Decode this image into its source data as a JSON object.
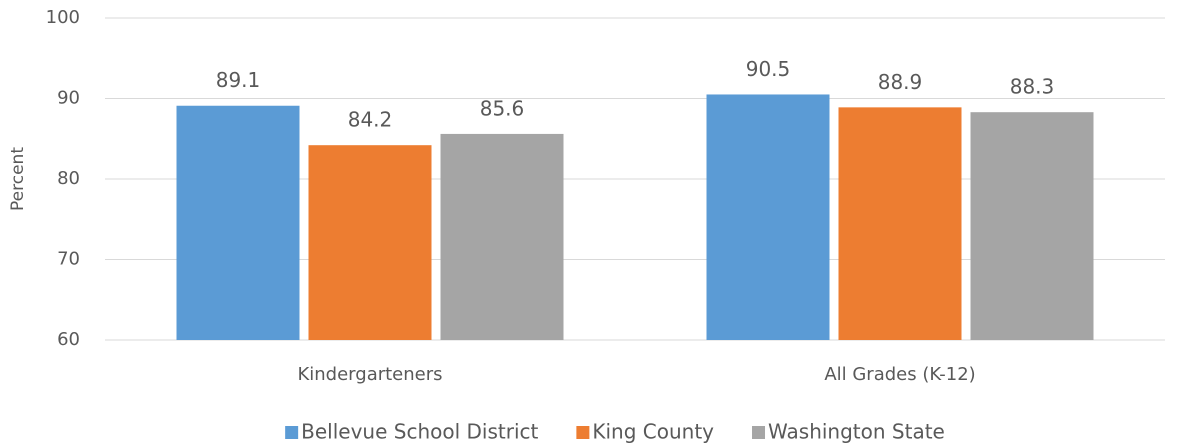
{
  "chart_data": {
    "type": "bar",
    "y_label": "Percent",
    "categories": [
      "Kindergarteners",
      "All Grades (K-12)"
    ],
    "series": [
      {
        "name": "Bellevue School District",
        "color": "#5b9bd5",
        "values": [
          89.1,
          90.5
        ]
      },
      {
        "name": "King County",
        "color": "#ed7d31",
        "values": [
          84.2,
          88.9
        ]
      },
      {
        "name": "Washington State",
        "color": "#a5a5a5",
        "values": [
          85.6,
          88.3
        ]
      }
    ],
    "ylim": [
      60,
      100
    ],
    "yticks": [
      60,
      70,
      80,
      90,
      100
    ],
    "grid": true,
    "legend": "bottom"
  }
}
